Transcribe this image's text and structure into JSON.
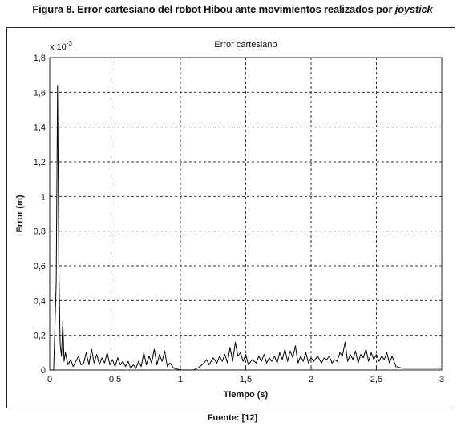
{
  "figure": {
    "title_prefix": "Figura 8. Error cartesiano del robot Hibou ante movimientos realizados por ",
    "title_italic": "joystick",
    "source": "Fuente: [12]"
  },
  "chart_data": {
    "type": "line",
    "title": "Error cartesiano",
    "xlabel": "Tiempo (s)",
    "ylabel": "Error (m)",
    "y_multiplier": "x 10-3",
    "xlim": [
      0,
      3
    ],
    "ylim": [
      0,
      1.8
    ],
    "x_ticks": [
      0,
      0.5,
      1,
      1.5,
      2,
      2.5,
      3
    ],
    "x_tick_labels": [
      "0",
      "0,5",
      "1",
      "1,5",
      "2",
      "2,5",
      "3"
    ],
    "y_ticks": [
      0,
      0.2,
      0.4,
      0.6,
      0.8,
      1.0,
      1.2,
      1.4,
      1.6,
      1.8
    ],
    "y_tick_labels": [
      "0",
      "0,2",
      "0,4",
      "0,6",
      "0,8",
      "1",
      "1,2",
      "1,4",
      "1,6",
      "1,8"
    ],
    "grid": true,
    "series": [
      {
        "color": "#000000",
        "x": [
          0.0,
          0.03,
          0.05,
          0.06,
          0.07,
          0.08,
          0.09,
          0.1,
          0.11,
          0.12,
          0.14,
          0.16,
          0.18,
          0.2,
          0.22,
          0.24,
          0.26,
          0.28,
          0.3,
          0.32,
          0.34,
          0.36,
          0.38,
          0.4,
          0.42,
          0.44,
          0.46,
          0.48,
          0.5,
          0.52,
          0.54,
          0.56,
          0.58,
          0.6,
          0.62,
          0.64,
          0.66,
          0.68,
          0.7,
          0.72,
          0.74,
          0.76,
          0.78,
          0.8,
          0.82,
          0.84,
          0.86,
          0.88,
          0.9,
          0.92,
          0.95,
          1.0,
          1.05,
          1.1,
          1.13,
          1.15,
          1.18,
          1.2,
          1.22,
          1.25,
          1.28,
          1.3,
          1.32,
          1.34,
          1.36,
          1.38,
          1.4,
          1.42,
          1.44,
          1.46,
          1.48,
          1.5,
          1.52,
          1.55,
          1.58,
          1.6,
          1.62,
          1.64,
          1.66,
          1.68,
          1.7,
          1.72,
          1.74,
          1.76,
          1.78,
          1.8,
          1.82,
          1.84,
          1.86,
          1.88,
          1.9,
          1.92,
          1.94,
          1.96,
          1.98,
          2.0,
          2.02,
          2.05,
          2.08,
          2.1,
          2.12,
          2.14,
          2.16,
          2.18,
          2.2,
          2.22,
          2.24,
          2.26,
          2.28,
          2.3,
          2.32,
          2.34,
          2.36,
          2.38,
          2.4,
          2.42,
          2.44,
          2.46,
          2.48,
          2.5,
          2.52,
          2.54,
          2.56,
          2.58,
          2.6,
          2.62,
          2.65,
          2.7,
          2.8,
          2.9,
          3.0
        ],
        "y": [
          0.0,
          0.0,
          0.5,
          1.64,
          0.6,
          0.15,
          0.08,
          0.28,
          0.05,
          0.1,
          0.03,
          0.06,
          0.02,
          0.05,
          0.08,
          0.03,
          0.04,
          0.1,
          0.03,
          0.12,
          0.04,
          0.09,
          0.03,
          0.07,
          0.04,
          0.1,
          0.03,
          0.06,
          0.02,
          0.07,
          0.03,
          0.05,
          0.02,
          0.05,
          0.01,
          0.03,
          0.01,
          0.05,
          0.02,
          0.1,
          0.03,
          0.08,
          0.04,
          0.12,
          0.03,
          0.09,
          0.05,
          0.11,
          0.02,
          0.04,
          0.01,
          0.0,
          0.0,
          0.0,
          0.01,
          0.02,
          0.04,
          0.06,
          0.03,
          0.07,
          0.04,
          0.08,
          0.05,
          0.09,
          0.04,
          0.13,
          0.05,
          0.16,
          0.08,
          0.1,
          0.05,
          0.09,
          0.03,
          0.06,
          0.04,
          0.08,
          0.05,
          0.09,
          0.04,
          0.07,
          0.05,
          0.08,
          0.04,
          0.1,
          0.06,
          0.12,
          0.05,
          0.11,
          0.07,
          0.14,
          0.04,
          0.08,
          0.05,
          0.1,
          0.04,
          0.07,
          0.05,
          0.08,
          0.04,
          0.07,
          0.06,
          0.08,
          0.04,
          0.06,
          0.05,
          0.1,
          0.08,
          0.16,
          0.05,
          0.09,
          0.06,
          0.11,
          0.04,
          0.09,
          0.07,
          0.12,
          0.05,
          0.1,
          0.06,
          0.09,
          0.05,
          0.08,
          0.06,
          0.1,
          0.04,
          0.08,
          0.02,
          0.01,
          0.01,
          0.01,
          0.01
        ]
      }
    ]
  }
}
